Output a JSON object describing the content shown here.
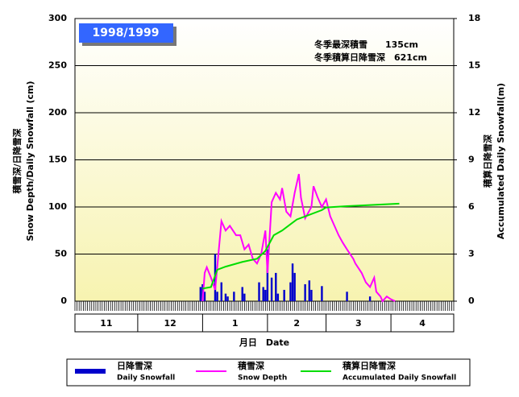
{
  "chart_data": {
    "type": "combo",
    "title": "1998/1999",
    "annotations": [
      "冬季最深積雪　　135cm",
      "冬季積算日降雪深　621cm"
    ],
    "y_label": [
      "積雪深/日降雪深",
      "Snow Depth/Daily Snowfall (cm)"
    ],
    "y2_label": [
      "積算日降雪深",
      "Accumulated Daily Snowfall(m)"
    ],
    "x_label": "月日　Date",
    "categories": [
      "11",
      "12",
      "1",
      "2",
      "3",
      "4"
    ],
    "xlim": [
      0,
      181
    ],
    "ylim": [
      0,
      300
    ],
    "yticks": [
      0,
      50,
      100,
      150,
      200,
      250,
      300
    ],
    "y2lim": [
      0,
      18
    ],
    "y2ticks": [
      0,
      3,
      6,
      9,
      12,
      15,
      18
    ],
    "grid": true,
    "series": [
      {
        "name": "日降雪深",
        "name_en": "Daily Snowfall",
        "type": "bar",
        "color": "#0000cc",
        "x": [
          60,
          61,
          62,
          67,
          68,
          70,
          72,
          73,
          76,
          80,
          81,
          88,
          90,
          91,
          92,
          94,
          96,
          97,
          100,
          103,
          104,
          105,
          110,
          112,
          113,
          118,
          130,
          141
        ],
        "values": [
          15,
          18,
          10,
          50,
          10,
          20,
          8,
          5,
          10,
          15,
          8,
          20,
          15,
          12,
          55,
          25,
          30,
          8,
          12,
          20,
          40,
          30,
          18,
          22,
          12,
          16,
          10,
          5
        ]
      },
      {
        "name": "積雪深",
        "name_en": "Snow Depth",
        "type": "line",
        "color": "#ff00ff",
        "x": [
          61,
          62,
          63,
          65,
          67,
          70,
          72,
          74,
          77,
          79,
          81,
          83,
          85,
          87,
          89,
          91,
          92,
          94,
          96,
          98,
          99,
          101,
          103,
          105,
          107,
          108,
          110,
          113,
          114,
          116,
          118,
          120,
          122,
          124,
          126,
          128,
          130,
          133,
          134,
          137,
          139,
          141,
          143,
          144,
          146,
          147,
          149,
          151,
          153
        ],
        "values": [
          0,
          30,
          36,
          25,
          12,
          85,
          75,
          80,
          70,
          70,
          55,
          60,
          45,
          40,
          50,
          75,
          30,
          105,
          115,
          108,
          120,
          95,
          90,
          115,
          135,
          110,
          88,
          100,
          122,
          110,
          100,
          108,
          90,
          80,
          70,
          62,
          55,
          45,
          40,
          30,
          20,
          15,
          25,
          10,
          5,
          0,
          5,
          2,
          0
        ]
      },
      {
        "name": "積算日降雪深",
        "name_en": "Accumulated Daily Snowfall",
        "type": "line",
        "axis": "y2",
        "color": "#00dd00",
        "x": [
          61,
          65,
          68,
          72,
          80,
          87,
          91,
          95,
          99,
          103,
          106,
          118,
          120,
          130,
          141,
          155
        ],
        "values": [
          0.8,
          0.9,
          2.0,
          2.2,
          2.5,
          2.7,
          3.2,
          4.2,
          4.5,
          4.9,
          5.2,
          5.8,
          5.97,
          6.05,
          6.12,
          6.21
        ]
      }
    ]
  }
}
